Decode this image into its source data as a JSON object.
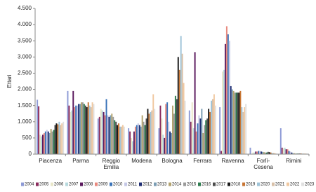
{
  "chart_data": {
    "type": "bar",
    "y_label": "Ettari",
    "categories": [
      "Piacenza",
      "Parma",
      "Reggio Emilia",
      "Modena",
      "Bologna",
      "Ferrara",
      "Ravenna",
      "Forlì-Cesena",
      "Rimini"
    ],
    "ylim": [
      0,
      4500
    ],
    "yticks": [
      0,
      500,
      {
        "value": 1000,
        "label": "1.000"
      },
      {
        "value": 1500,
        "label": "1.500"
      },
      {
        "value": 2000,
        "label": "2.000"
      },
      {
        "value": 2500,
        "label": "2.500"
      },
      {
        "value": 3000,
        "label": "3.000"
      },
      {
        "value": 3500,
        "label": "3.500"
      },
      {
        "value": 4000,
        "label": "4.000"
      },
      {
        "value": 4500,
        "label": "4.500"
      }
    ],
    "series": [
      {
        "name": "2004",
        "color": "#8e9bd6",
        "values": [
          1680,
          1950,
          1100,
          800,
          800,
          1350,
          1450,
          200,
          800
        ]
      },
      {
        "name": "2005",
        "color": "#8b2b5c",
        "values": [
          1480,
          1500,
          1150,
          700,
          1500,
          1000,
          100,
          10,
          200
        ]
      },
      {
        "name": "2006",
        "color": "#e8e6c8",
        "values": [
          600,
          1300,
          1400,
          500,
          1100,
          1600,
          2550,
          50,
          180
        ]
      },
      {
        "name": "2007",
        "color": "#b7d9dd",
        "values": [
          550,
          1350,
          1350,
          400,
          600,
          800,
          2600,
          50,
          200
        ]
      },
      {
        "name": "2008",
        "color": "#5b1a5e",
        "values": [
          600,
          1950,
          1300,
          700,
          500,
          3150,
          3400,
          80,
          150
        ]
      },
      {
        "name": "2009",
        "color": "#e88a7f",
        "values": [
          650,
          1450,
          1200,
          850,
          1550,
          700,
          3950,
          80,
          150
        ]
      },
      {
        "name": "2010",
        "color": "#3a73b8",
        "values": [
          700,
          1500,
          1700,
          900,
          1600,
          950,
          3700,
          100,
          100
        ]
      },
      {
        "name": "2011",
        "color": "#c5c8e6",
        "values": [
          750,
          1500,
          1200,
          950,
          1000,
          1200,
          3500,
          100,
          80
        ]
      },
      {
        "name": "2012",
        "color": "#1f2e73",
        "values": [
          700,
          1550,
          1150,
          900,
          700,
          1100,
          2100,
          80,
          50
        ]
      },
      {
        "name": "2013",
        "color": "#7a9cb3",
        "values": [
          650,
          1550,
          1200,
          850,
          650,
          1400,
          2000,
          70,
          30
        ]
      },
      {
        "name": "2014",
        "color": "#b3a36f",
        "values": [
          780,
          1600,
          1250,
          1200,
          1500,
          650,
          1950,
          60,
          30
        ]
      },
      {
        "name": "2015",
        "color": "#9a9a9a",
        "values": [
          700,
          1600,
          1150,
          1000,
          1250,
          900,
          1900,
          50,
          20
        ]
      },
      {
        "name": "2016",
        "color": "#2e7d4f",
        "values": [
          750,
          1550,
          1050,
          900,
          1800,
          1050,
          1900,
          50,
          20
        ]
      },
      {
        "name": "2017",
        "color": "#4b4b4b",
        "values": [
          900,
          1500,
          1000,
          1100,
          1700,
          1100,
          1900,
          70,
          20
        ]
      },
      {
        "name": "2018",
        "color": "#1a1a1a",
        "values": [
          950,
          1450,
          900,
          1400,
          3000,
          1400,
          1900,
          60,
          20
        ]
      },
      {
        "name": "2019",
        "color": "#c87533",
        "values": [
          920,
          1600,
          950,
          1250,
          2600,
          1300,
          1950,
          50,
          20
        ]
      },
      {
        "name": "2020",
        "color": "#9fc4d8",
        "values": [
          1000,
          1500,
          850,
          1300,
          3650,
          1650,
          1450,
          40,
          20
        ]
      },
      {
        "name": "2021",
        "color": "#d8c0a8",
        "values": [
          900,
          1450,
          850,
          1350,
          3100,
          1700,
          1300,
          40,
          20
        ]
      },
      {
        "name": "2022",
        "color": "#f0c8a0",
        "values": [
          950,
          1600,
          900,
          1850,
          2200,
          1850,
          1450,
          30,
          20
        ]
      },
      {
        "name": "2023",
        "color": "#e0e0e0",
        "values": [
          1000,
          1550,
          850,
          1400,
          1650,
          1500,
          1550,
          20,
          20
        ]
      }
    ]
  }
}
